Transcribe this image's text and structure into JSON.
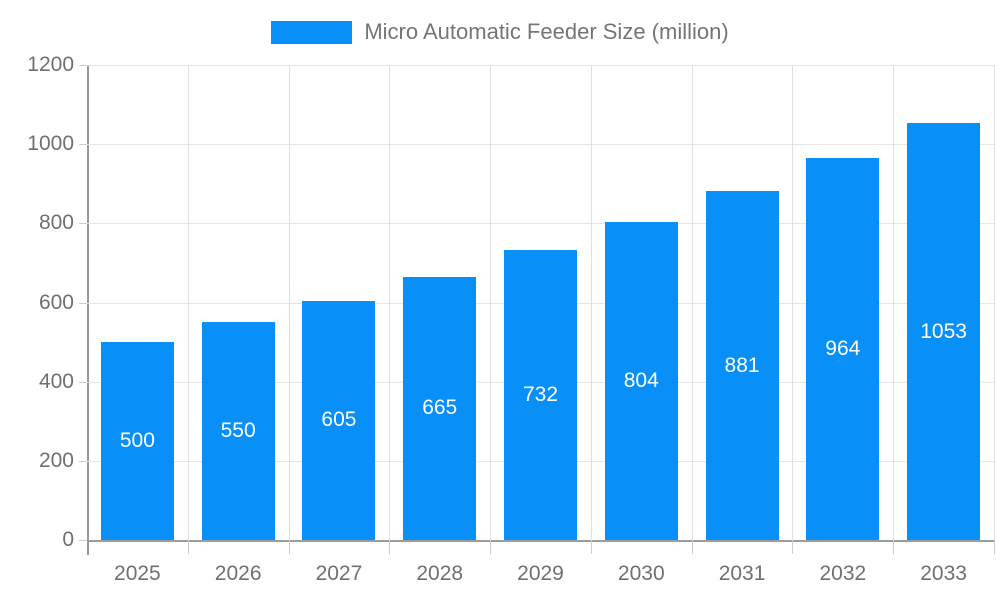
{
  "legend": {
    "label": "Micro Automatic Feeder Size (million)"
  },
  "colors": {
    "bar": "#0890F8",
    "bar_label": "#ffffff",
    "axis_text": "#707070",
    "legend_text": "#757575",
    "gridline": "#e6e6e6",
    "axis_line": "#9b9b9b",
    "tick": "#cccccc",
    "background": "#ffffff"
  },
  "chart_data": {
    "type": "bar",
    "title": "Micro Automatic Feeder Size (million)",
    "categories": [
      "2025",
      "2026",
      "2027",
      "2028",
      "2029",
      "2030",
      "2031",
      "2032",
      "2033"
    ],
    "values": [
      500,
      550,
      605,
      665,
      732,
      804,
      881,
      964,
      1053
    ],
    "xlabel": "",
    "ylabel": "",
    "ylim": [
      0,
      1200
    ],
    "ytick_step": 200,
    "ytick_labels": [
      "0",
      "200",
      "400",
      "600",
      "800",
      "1000",
      "1200"
    ],
    "grid": true,
    "legend_position": "top-center",
    "value_labels": "inside-center"
  }
}
